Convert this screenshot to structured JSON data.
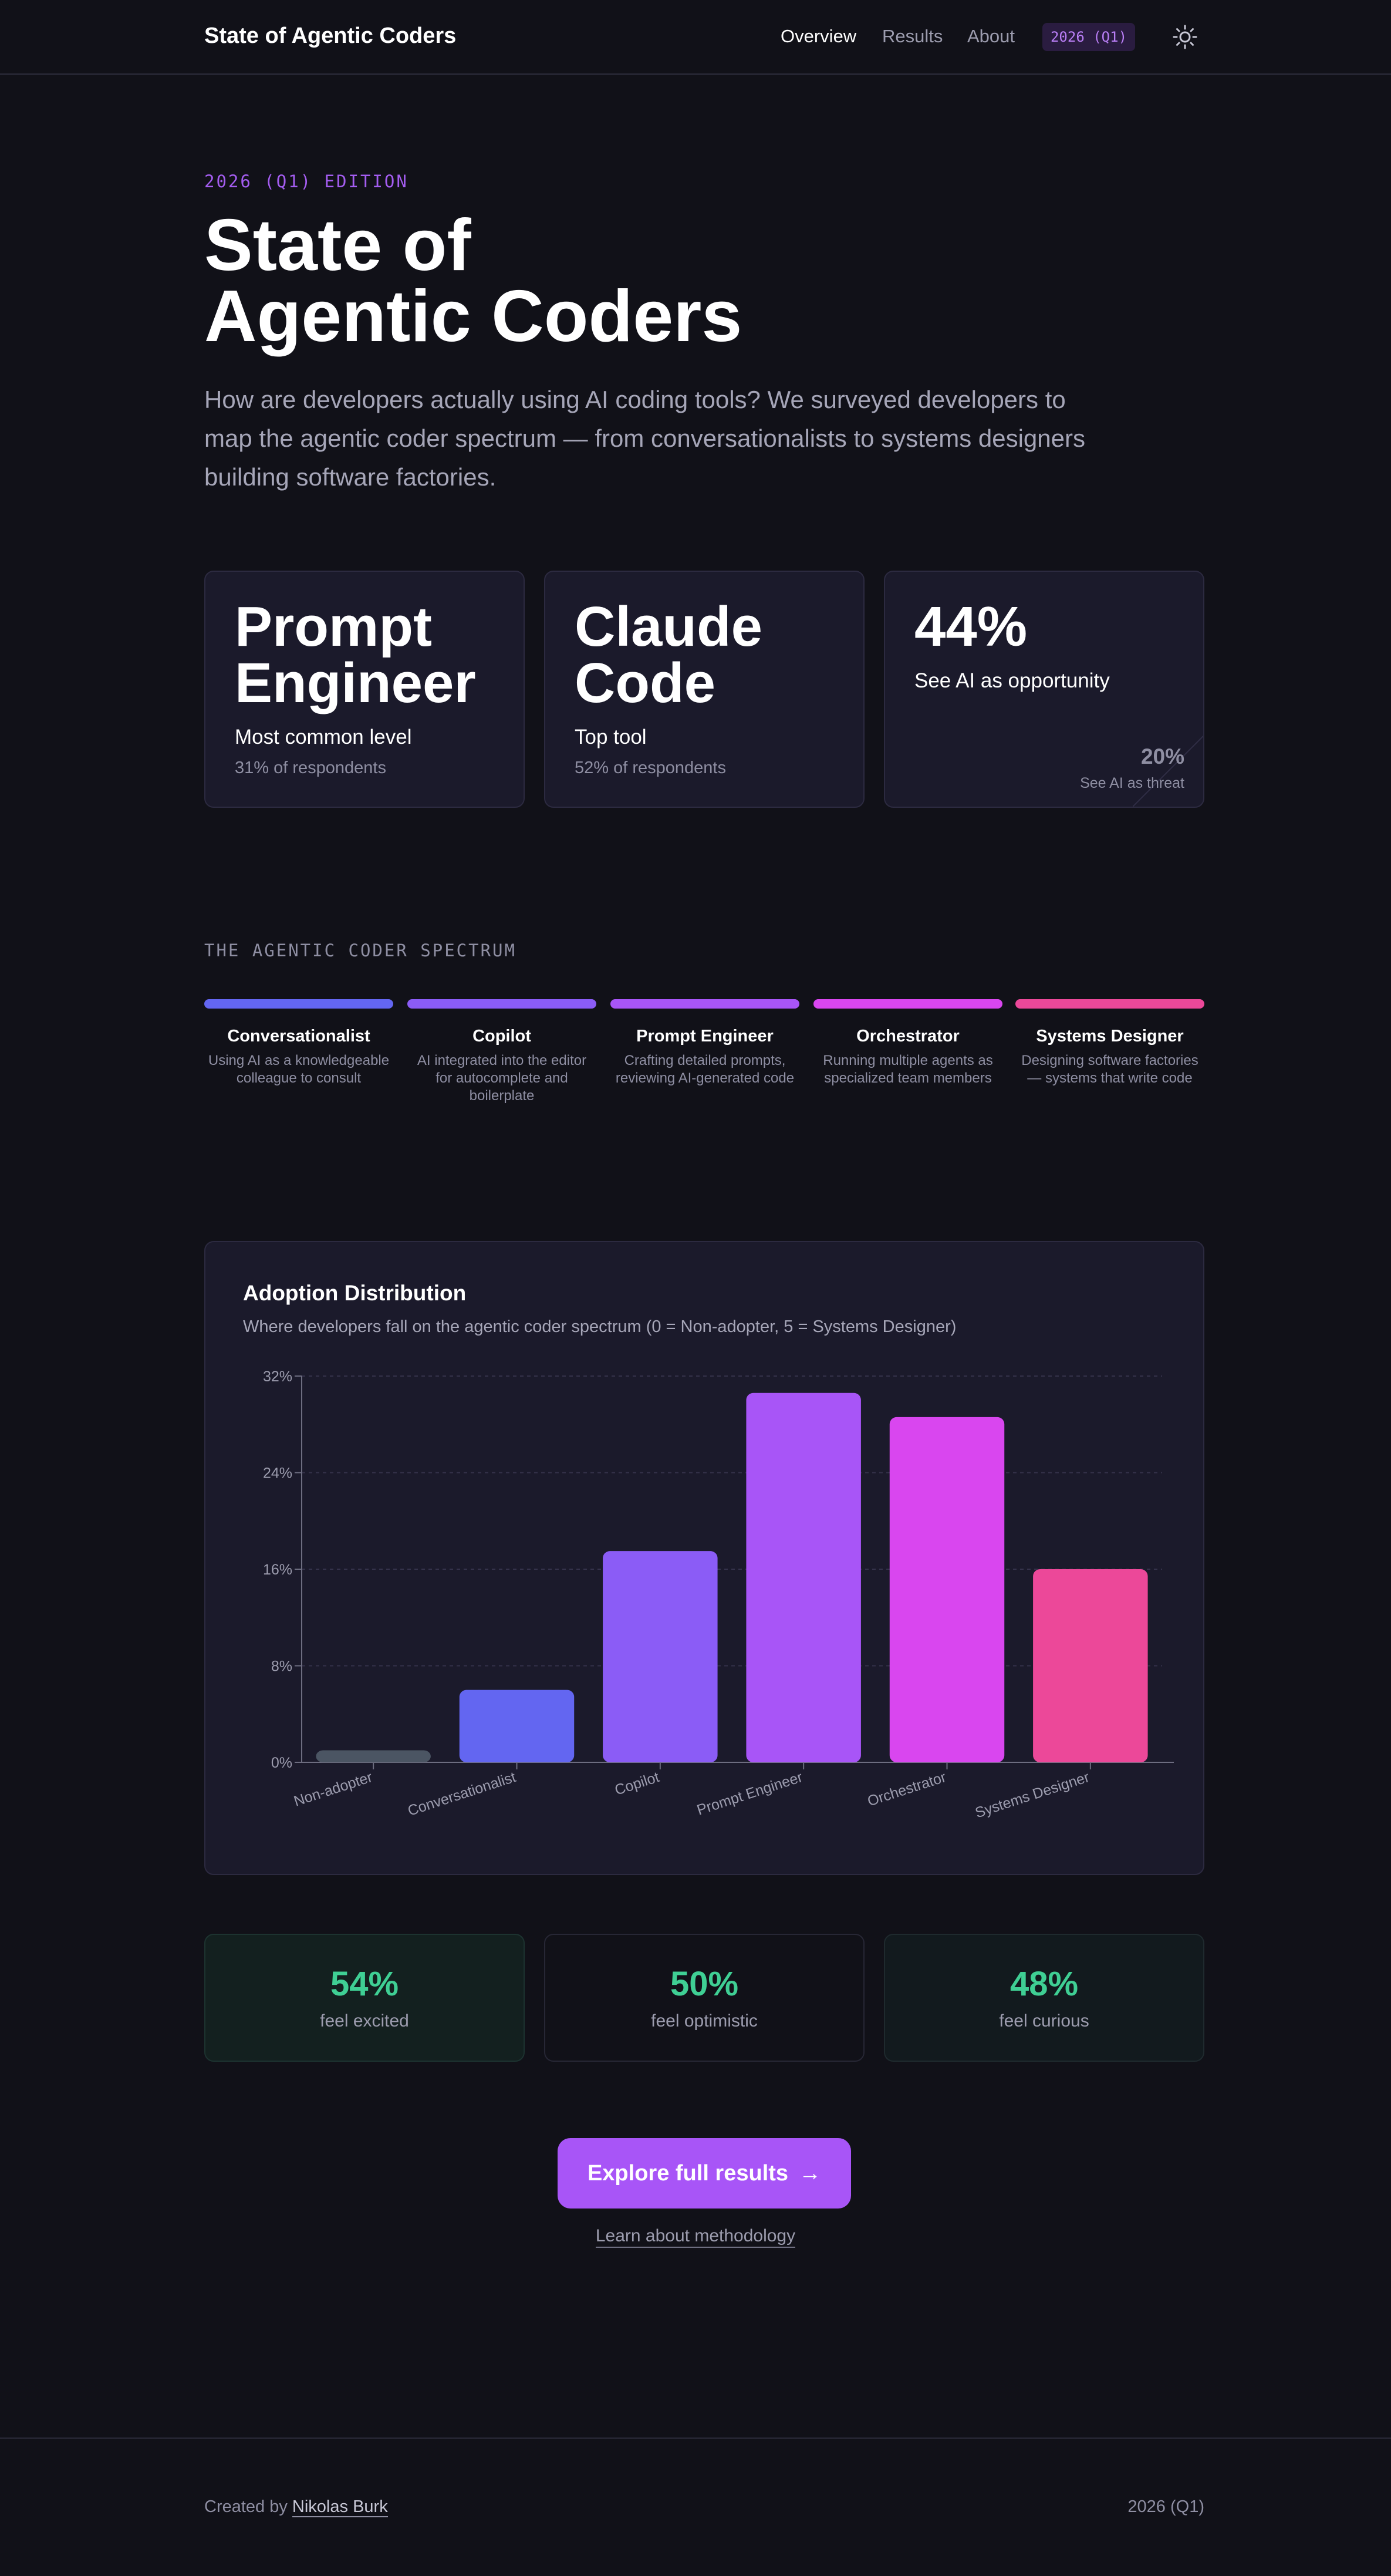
{
  "header": {
    "brand": "State of Agentic Coders",
    "nav": [
      "Overview",
      "Results",
      "About"
    ],
    "badge": "2026 (Q1)",
    "theme_icon": "sun-icon"
  },
  "hero": {
    "edition": "2026 (Q1) EDITION",
    "title_line1": "State of",
    "title_line2": "Agentic Coders",
    "subtitle": "How are developers actually using AI coding tools? We surveyed developers to map the agentic coder spectrum — from conversationalists to systems designers building software factories."
  },
  "stats": [
    {
      "big_line1": "Prompt",
      "big_line2": "Engineer",
      "label": "Most common level",
      "meta": "31% of respondents"
    },
    {
      "big_line1": "Claude",
      "big_line2": "Code",
      "label": "Top tool",
      "meta": "52% of respondents"
    },
    {
      "big": "44%",
      "label": "See AI as opportunity",
      "threat_pct": "20%",
      "threat_label": "See AI as threat"
    }
  ],
  "spectrum": {
    "section_label": "THE AGENTIC CODER SPECTRUM",
    "levels": [
      {
        "name": "Conversationalist",
        "desc": "Using AI as a knowledgeable colleague to consult",
        "color": "#6366f1"
      },
      {
        "name": "Copilot",
        "desc": "AI integrated into the editor for autocomplete and boilerplate",
        "color": "#8b5cf6"
      },
      {
        "name": "Prompt Engineer",
        "desc": "Crafting detailed prompts, reviewing AI-generated code",
        "color": "#a855f7"
      },
      {
        "name": "Orchestrator",
        "desc": "Running multiple agents as specialized team members",
        "color": "#d946ef"
      },
      {
        "name": "Systems Designer",
        "desc": "Designing software factories — systems that write code",
        "color": "#ec4899"
      }
    ]
  },
  "chart_card": {
    "title": "Adoption Distribution",
    "subtitle": "Where developers fall on the agentic coder spectrum (0 = Non-adopter, 5 = Systems Designer)"
  },
  "chart_data": {
    "type": "bar",
    "categories": [
      "Non-adopter",
      "Conversationalist",
      "Copilot",
      "Prompt Engineer",
      "Orchestrator",
      "Systems Designer"
    ],
    "values": [
      1,
      6,
      17.5,
      30.6,
      28.6,
      16
    ],
    "colors": [
      "#4b5563",
      "#6366f1",
      "#8b5cf6",
      "#a855f7",
      "#d946ef",
      "#ec4899"
    ],
    "y_ticks": [
      "0%",
      "8%",
      "16%",
      "24%",
      "32%"
    ],
    "ylim": [
      0,
      32
    ],
    "grid": true
  },
  "sentiment": [
    {
      "pct": "54%",
      "label": "feel excited"
    },
    {
      "pct": "50%",
      "label": "feel optimistic"
    },
    {
      "pct": "48%",
      "label": "feel curious"
    }
  ],
  "cta": {
    "label": "Explore full results",
    "arrow": "→",
    "secondary": "Learn about methodology"
  },
  "footer": {
    "created_by": "Created by",
    "author": "Nikolas Burk",
    "right": "2026 (Q1)"
  }
}
